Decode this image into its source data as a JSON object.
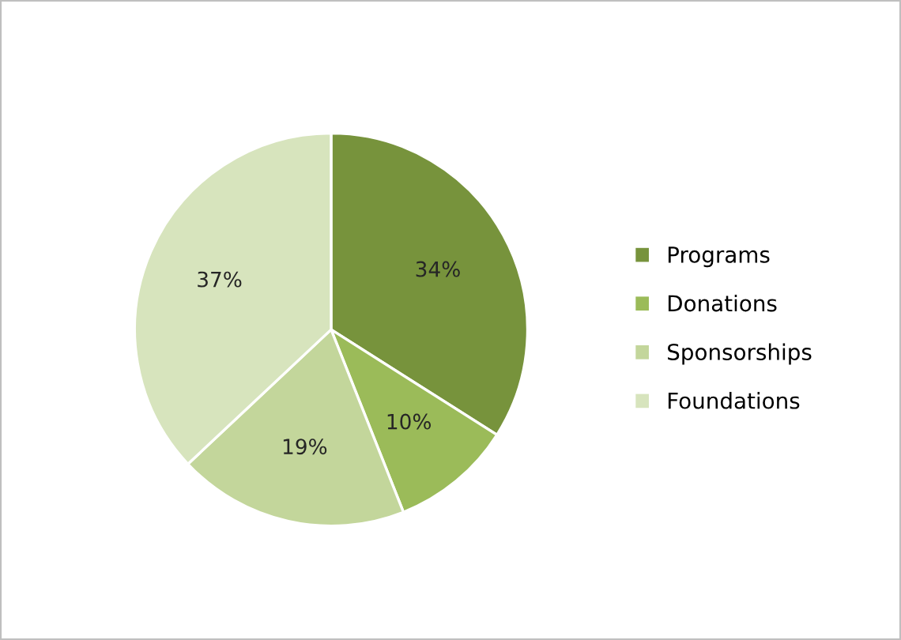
{
  "chart_data": {
    "type": "pie",
    "categories": [
      "Programs",
      "Donations",
      "Sponsorships",
      "Foundations"
    ],
    "values": [
      34,
      10,
      19,
      37
    ],
    "colors": [
      "#77933c",
      "#9bbb59",
      "#c3d69b",
      "#d7e4bd"
    ],
    "value_labels": [
      "34%",
      "10%",
      "19%",
      "37%"
    ],
    "legend": "right"
  }
}
